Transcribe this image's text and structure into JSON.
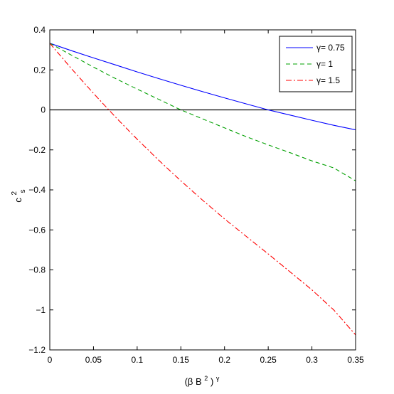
{
  "chart_data": {
    "type": "line",
    "xlabel": {
      "base": "(β B",
      "sup1": "2",
      "close": ")",
      "sup2": "γ"
    },
    "ylabel": {
      "base": "c",
      "sup": "2",
      "sub": "s"
    },
    "xlim": [
      0,
      0.35
    ],
    "ylim": [
      -1.2,
      0.4
    ],
    "xticks": [
      0,
      0.05,
      0.1,
      0.15,
      0.2,
      0.25,
      0.3,
      0.35
    ],
    "xtick_labels": [
      "0",
      "0.05",
      "0.1",
      "0.15",
      "0.2",
      "0.25",
      "0.3",
      "0.35"
    ],
    "yticks": [
      -1.2,
      -1,
      -0.8,
      -0.6,
      -0.4,
      -0.2,
      0,
      0.2,
      0.4
    ],
    "ytick_labels": [
      "−1.2",
      "−1",
      "−0.8",
      "−0.6",
      "−0.4",
      "−0.2",
      "0",
      "0.2",
      "0.4"
    ],
    "grid": false,
    "legend_position": "top-right",
    "reference_line": {
      "y": 0,
      "color": "#000000"
    },
    "series": [
      {
        "name": "γ= 0.75",
        "color": "#0000ff",
        "dash": "solid",
        "x": [
          0,
          0.025,
          0.05,
          0.075,
          0.1,
          0.125,
          0.15,
          0.175,
          0.2,
          0.225,
          0.25,
          0.275,
          0.3,
          0.325,
          0.35
        ],
        "y": [
          0.333,
          0.296,
          0.26,
          0.225,
          0.19,
          0.156,
          0.123,
          0.091,
          0.06,
          0.03,
          0.0,
          -0.026,
          -0.052,
          -0.077,
          -0.1
        ]
      },
      {
        "name": "γ= 1",
        "color": "#00a000",
        "dash": "dashed",
        "x": [
          0,
          0.025,
          0.05,
          0.075,
          0.1,
          0.125,
          0.15,
          0.175,
          0.2,
          0.225,
          0.25,
          0.275,
          0.3,
          0.325,
          0.35
        ],
        "y": [
          0.333,
          0.273,
          0.214,
          0.157,
          0.104,
          0.052,
          0.0,
          -0.045,
          -0.09,
          -0.134,
          -0.175,
          -0.214,
          -0.255,
          -0.29,
          -0.355
        ]
      },
      {
        "name": "γ= 1.5",
        "color": "#ff0000",
        "dash": "dashdot",
        "x": [
          0,
          0.025,
          0.05,
          0.075,
          0.1,
          0.125,
          0.15,
          0.175,
          0.2,
          0.225,
          0.25,
          0.275,
          0.3,
          0.325,
          0.35
        ],
        "y": [
          0.333,
          0.205,
          0.083,
          -0.035,
          -0.147,
          -0.253,
          -0.355,
          -0.452,
          -0.545,
          -0.633,
          -0.72,
          -0.81,
          -0.9,
          -1.0,
          -1.125
        ]
      }
    ]
  }
}
